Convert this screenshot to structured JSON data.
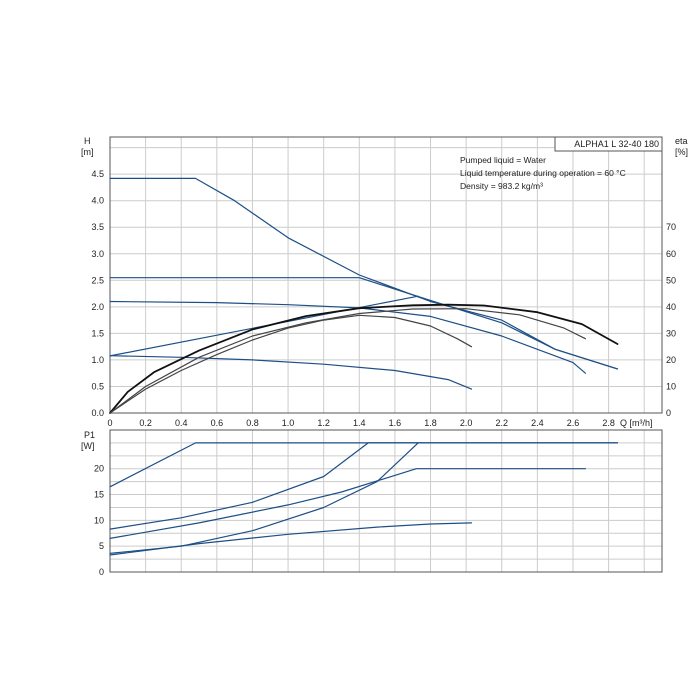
{
  "colors": {
    "blue": "#1d4f86",
    "black": "#111111",
    "dark_gray": "#444444",
    "grid": "#cccccc",
    "frame": "#555555"
  },
  "chart_data": [
    {
      "type": "line",
      "model_label": "ALPHA1 L 32-40 180",
      "notes": [
        "Pumped liquid = Water",
        "Liquid temperature during operation = 60 °C",
        "Density = 983.2 kg/m³"
      ],
      "ylabel": "H",
      "yunit": "[m]",
      "y2label": "eta",
      "y2unit": "[%]",
      "xlabel": "Q [m³/h]",
      "xlim": [
        0,
        3.1
      ],
      "ylim": [
        0,
        5.2
      ],
      "y2lim": [
        0,
        104
      ],
      "xticks": [
        "0",
        "0.2",
        "0.4",
        "0.6",
        "0.8",
        "1.0",
        "1.2",
        "1.4",
        "1.6",
        "1.8",
        "2.0",
        "2.2",
        "2.4",
        "2.6",
        "2.8"
      ],
      "yticks": [
        "0.0",
        "0.5",
        "1.0",
        "1.5",
        "2.0",
        "2.5",
        "3.0",
        "3.5",
        "4.0",
        "4.5"
      ],
      "y2ticks": [
        "0",
        "10",
        "20",
        "30",
        "40",
        "50",
        "60",
        "70"
      ],
      "grid": true,
      "series": [
        {
          "axis": "y",
          "color": "blue",
          "points": [
            [
              0,
              4.42
            ],
            [
              0.48,
              4.42
            ],
            [
              0.7,
              4.0
            ],
            [
              1.0,
              3.3
            ],
            [
              1.4,
              2.6
            ],
            [
              1.8,
              2.1
            ],
            [
              2.2,
              1.75
            ],
            [
              2.5,
              1.2
            ],
            [
              2.85,
              0.83
            ]
          ]
        },
        {
          "axis": "y",
          "color": "blue",
          "points": [
            [
              0,
              2.55
            ],
            [
              1.4,
              2.55
            ],
            [
              1.8,
              2.12
            ],
            [
              2.2,
              1.7
            ],
            [
              2.5,
              1.2
            ],
            [
              2.85,
              0.83
            ]
          ]
        },
        {
          "axis": "y",
          "color": "blue",
          "points": [
            [
              0,
              2.1
            ],
            [
              0.6,
              2.08
            ],
            [
              1.0,
              2.04
            ],
            [
              1.4,
              1.98
            ],
            [
              1.8,
              1.82
            ],
            [
              2.2,
              1.45
            ],
            [
              2.6,
              0.95
            ],
            [
              2.67,
              0.75
            ]
          ]
        },
        {
          "axis": "y",
          "color": "blue",
          "points": [
            [
              0,
              1.08
            ],
            [
              0.4,
              1.05
            ],
            [
              0.8,
              1.0
            ],
            [
              1.2,
              0.92
            ],
            [
              1.6,
              0.8
            ],
            [
              1.9,
              0.63
            ],
            [
              2.03,
              0.45
            ]
          ]
        },
        {
          "axis": "y2",
          "color": "blue",
          "points": [
            [
              0,
              21.5
            ],
            [
              1.73,
              44
            ]
          ]
        },
        {
          "axis": "y2",
          "color": "black",
          "width": 1.8,
          "points": [
            [
              0,
              0
            ],
            [
              0.1,
              8
            ],
            [
              0.25,
              15.5
            ],
            [
              0.5,
              23.5
            ],
            [
              0.8,
              31.5
            ],
            [
              1.1,
              36.5
            ],
            [
              1.4,
              39.5
            ],
            [
              1.7,
              40.6
            ],
            [
              1.9,
              40.8
            ],
            [
              2.1,
              40.5
            ],
            [
              2.4,
              38
            ],
            [
              2.65,
              33.5
            ],
            [
              2.85,
              26
            ]
          ]
        },
        {
          "axis": "y2",
          "color": "dark_gray",
          "points": [
            [
              0,
              0
            ],
            [
              0.2,
              10
            ],
            [
              0.5,
              21
            ],
            [
              0.8,
              29
            ],
            [
              1.1,
              34
            ],
            [
              1.4,
              37.5
            ],
            [
              1.7,
              39.2
            ],
            [
              2.0,
              39.3
            ],
            [
              2.3,
              37
            ],
            [
              2.55,
              32
            ],
            [
              2.67,
              28
            ]
          ]
        },
        {
          "axis": "y2",
          "color": "dark_gray",
          "points": [
            [
              0,
              0
            ],
            [
              0.2,
              9
            ],
            [
              0.4,
              16
            ],
            [
              0.6,
              22
            ],
            [
              0.8,
              27.5
            ],
            [
              1.0,
              32
            ],
            [
              1.2,
              35
            ],
            [
              1.4,
              36.8
            ],
            [
              1.6,
              36
            ],
            [
              1.8,
              32.8
            ],
            [
              1.95,
              28
            ],
            [
              2.03,
              25
            ]
          ]
        }
      ]
    },
    {
      "type": "line",
      "ylabel": "P1",
      "yunit": "[W]",
      "xlim": [
        0,
        3.1
      ],
      "ylim": [
        0,
        27.5
      ],
      "yticks": [
        "0",
        "5",
        "10",
        "15",
        "20"
      ],
      "grid": true,
      "series": [
        {
          "color": "blue",
          "points": [
            [
              0,
              16.5
            ],
            [
              0.48,
              25
            ],
            [
              2.85,
              25
            ]
          ]
        },
        {
          "color": "blue",
          "points": [
            [
              0,
              8.3
            ],
            [
              0.4,
              10.5
            ],
            [
              0.8,
              13.5
            ],
            [
              1.2,
              18.5
            ],
            [
              1.45,
              25
            ],
            [
              2.85,
              25
            ]
          ]
        },
        {
          "color": "blue",
          "points": [
            [
              0,
              6.5
            ],
            [
              0.5,
              9.5
            ],
            [
              1.0,
              13
            ],
            [
              1.3,
              15.5
            ],
            [
              1.72,
              20
            ],
            [
              2.67,
              20
            ]
          ]
        },
        {
          "color": "blue",
          "points": [
            [
              0,
              3.6
            ],
            [
              0.4,
              5
            ],
            [
              0.8,
              8
            ],
            [
              1.2,
              12.5
            ],
            [
              1.5,
              17.5
            ],
            [
              1.73,
              25
            ]
          ]
        },
        {
          "color": "blue",
          "points": [
            [
              0,
              3.3
            ],
            [
              0.5,
              5.5
            ],
            [
              1.0,
              7.3
            ],
            [
              1.5,
              8.7
            ],
            [
              1.8,
              9.3
            ],
            [
              2.03,
              9.5
            ]
          ]
        }
      ]
    }
  ]
}
